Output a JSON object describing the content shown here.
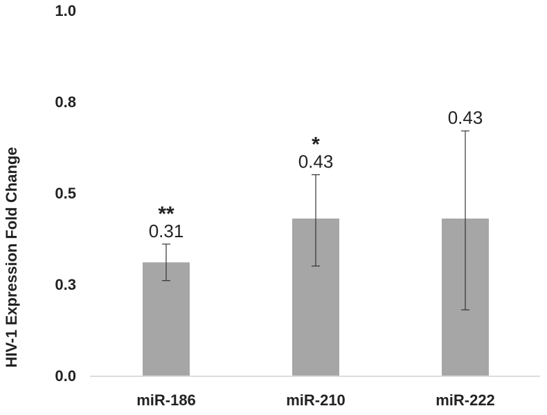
{
  "chart_data": {
    "type": "bar",
    "title": "",
    "xlabel": "",
    "ylabel": "HIV-1 Expression Fold Change",
    "categories": [
      "miR-186",
      "miR-210",
      "miR-222"
    ],
    "values": [
      0.31,
      0.43,
      0.43
    ],
    "data_labels": [
      "0.31",
      "0.43",
      "0.43"
    ],
    "error_upper": [
      0.36,
      0.55,
      0.67
    ],
    "error_lower": [
      0.26,
      0.3,
      0.18
    ],
    "significance": [
      "**",
      "*",
      ""
    ],
    "y_ticks": [
      {
        "value": 0.0,
        "label": "0.0"
      },
      {
        "value": 0.25,
        "label": "0.3"
      },
      {
        "value": 0.5,
        "label": "0.5"
      },
      {
        "value": 0.75,
        "label": "0.8"
      },
      {
        "value": 1.0,
        "label": "1.0"
      }
    ],
    "ylim": [
      0,
      1.0
    ],
    "grid": false,
    "legend": "none",
    "bar_color": "#a6a6a6",
    "axis_color": "#d0d0d0"
  }
}
